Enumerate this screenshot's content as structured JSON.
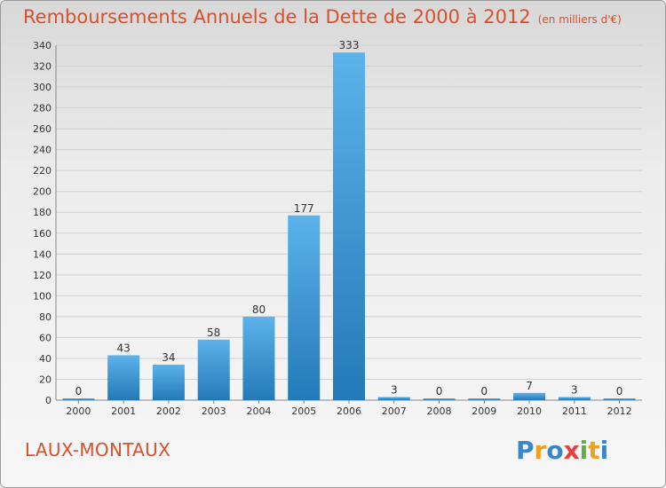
{
  "header": {
    "title": "Remboursements Annuels de la Dette de 2000 à 2012",
    "unit": "(en milliers d'€)"
  },
  "footer": {
    "commune": "LAUX-MONTAUX",
    "logo_text": "Proxiti"
  },
  "colors": {
    "title": "#d9502a",
    "bar_light": "#5cb2ea",
    "bar_dark": "#2479b8",
    "grid": "#cfcfcf"
  },
  "chart_data": {
    "type": "bar",
    "title": "Remboursements Annuels de la Dette de 2000 à 2012",
    "subtitle": "(en milliers d'€)",
    "categories": [
      "2000",
      "2001",
      "2002",
      "2003",
      "2004",
      "2005",
      "2006",
      "2007",
      "2008",
      "2009",
      "2010",
      "2011",
      "2012"
    ],
    "values": [
      0,
      43,
      34,
      58,
      80,
      177,
      333,
      3,
      0,
      0,
      7,
      3,
      0
    ],
    "ylim": [
      0,
      340
    ],
    "ytick_step": 20,
    "grid": true,
    "xlabel": "",
    "ylabel": ""
  }
}
